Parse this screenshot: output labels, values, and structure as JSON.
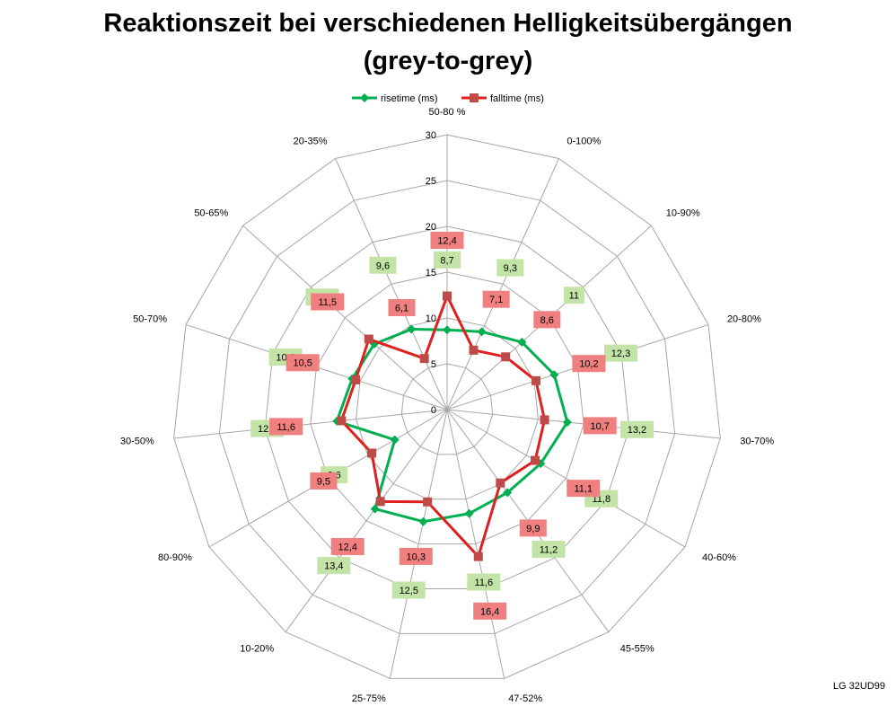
{
  "chart_data": {
    "type": "radar",
    "title_line1": "Reaktionszeit bei verschiedenen Helligkeitsübergängen",
    "title_line2": "(grey-to-grey)",
    "categories": [
      "50-80 %",
      "0-100%",
      "10-90%",
      "20-80%",
      "30-70%",
      "40-60%",
      "45-55%",
      "47-52%",
      "25-75%",
      "10-20%",
      "80-90%",
      "30-50%",
      "50-70%",
      "50-65%",
      "20-35%"
    ],
    "radial_ticks": [
      "0",
      "5",
      "10",
      "15",
      "20",
      "25",
      "30"
    ],
    "rlim": [
      0,
      30
    ],
    "legend_position": "top",
    "series": [
      {
        "name": "risetime (ms)",
        "color": "#00b050",
        "label_bg": "#c4e3a6",
        "marker": "diamond",
        "values": [
          8.7,
          9.3,
          11,
          12.3,
          13.2,
          11.8,
          11.2,
          11.6,
          12.5,
          13.4,
          6.6,
          12.1,
          10.9,
          10.7,
          9.6
        ],
        "labels": [
          "8,7",
          "9,3",
          "11",
          "12,3",
          "13,2",
          "11,8",
          "11,2",
          "11,6",
          "12,5",
          "13,4",
          "6,6",
          "12,1",
          "10,9",
          "10,7",
          "9,6"
        ]
      },
      {
        "name": "falltime (ms)",
        "color": "#e0201e",
        "label_bg": "#f08080",
        "marker": "square",
        "values": [
          12.4,
          7.1,
          8.6,
          10.2,
          10.7,
          11.1,
          9.9,
          16.4,
          10.3,
          12.4,
          9.5,
          11.6,
          10.5,
          11.5,
          6.1
        ],
        "labels": [
          "12,4",
          "7,1",
          "8,6",
          "10,2",
          "10,7",
          "11,1",
          "9,9",
          "16,4",
          "10,3",
          "12,4",
          "9,5",
          "11,6",
          "10,5",
          "11,5",
          "6,1"
        ]
      }
    ]
  },
  "watermark": "LG 32UD99"
}
